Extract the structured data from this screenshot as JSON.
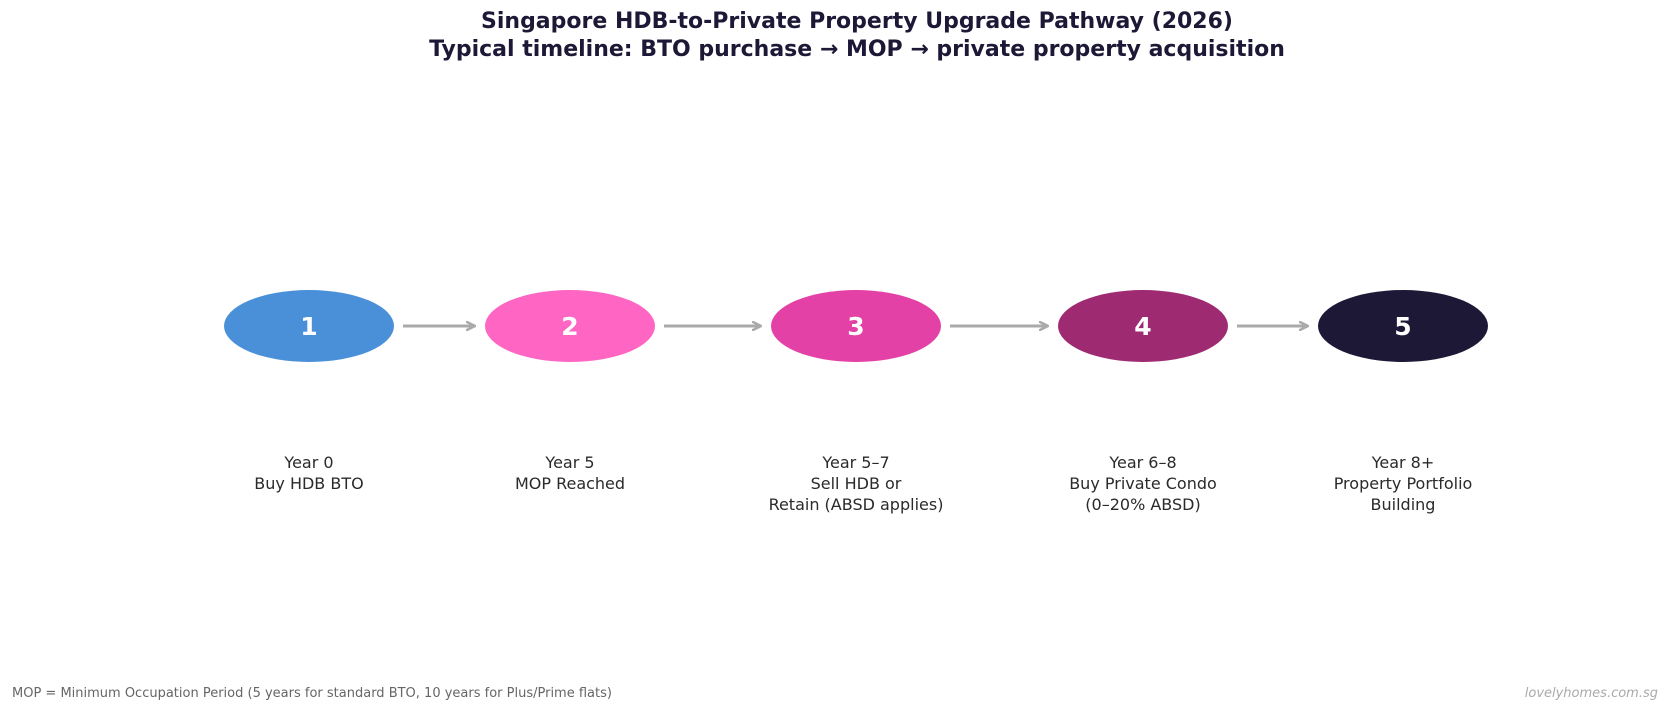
{
  "title": {
    "line1": "Singapore HDB-to-Private Property Upgrade Pathway (2026)",
    "line2": "Typical timeline: BTO purchase → MOP → private property acquisition"
  },
  "steps": [
    {
      "number": "1",
      "color": "#4a90d9",
      "lines": [
        "Year 0",
        "Buy HDB BTO"
      ]
    },
    {
      "number": "2",
      "color": "#ff66c4",
      "lines": [
        "Year 5",
        "MOP Reached"
      ]
    },
    {
      "number": "3",
      "color": "#e441a6",
      "lines": [
        "Year 5–7",
        "Sell HDB or",
        "Retain (ABSD applies)"
      ]
    },
    {
      "number": "4",
      "color": "#9e2a72",
      "lines": [
        "Year 6–8",
        "Buy Private Condo",
        "(0–20% ABSD)"
      ]
    },
    {
      "number": "5",
      "color": "#1c1836",
      "lines": [
        "Year 8+",
        "Property Portfolio",
        "Building"
      ]
    }
  ],
  "arrow_color": "#aaaaaa",
  "footnote": "MOP = Minimum Occupation Period (5 years for standard BTO, 10 years for Plus/Prime flats)",
  "watermark": "lovelyhomes.com.sg"
}
